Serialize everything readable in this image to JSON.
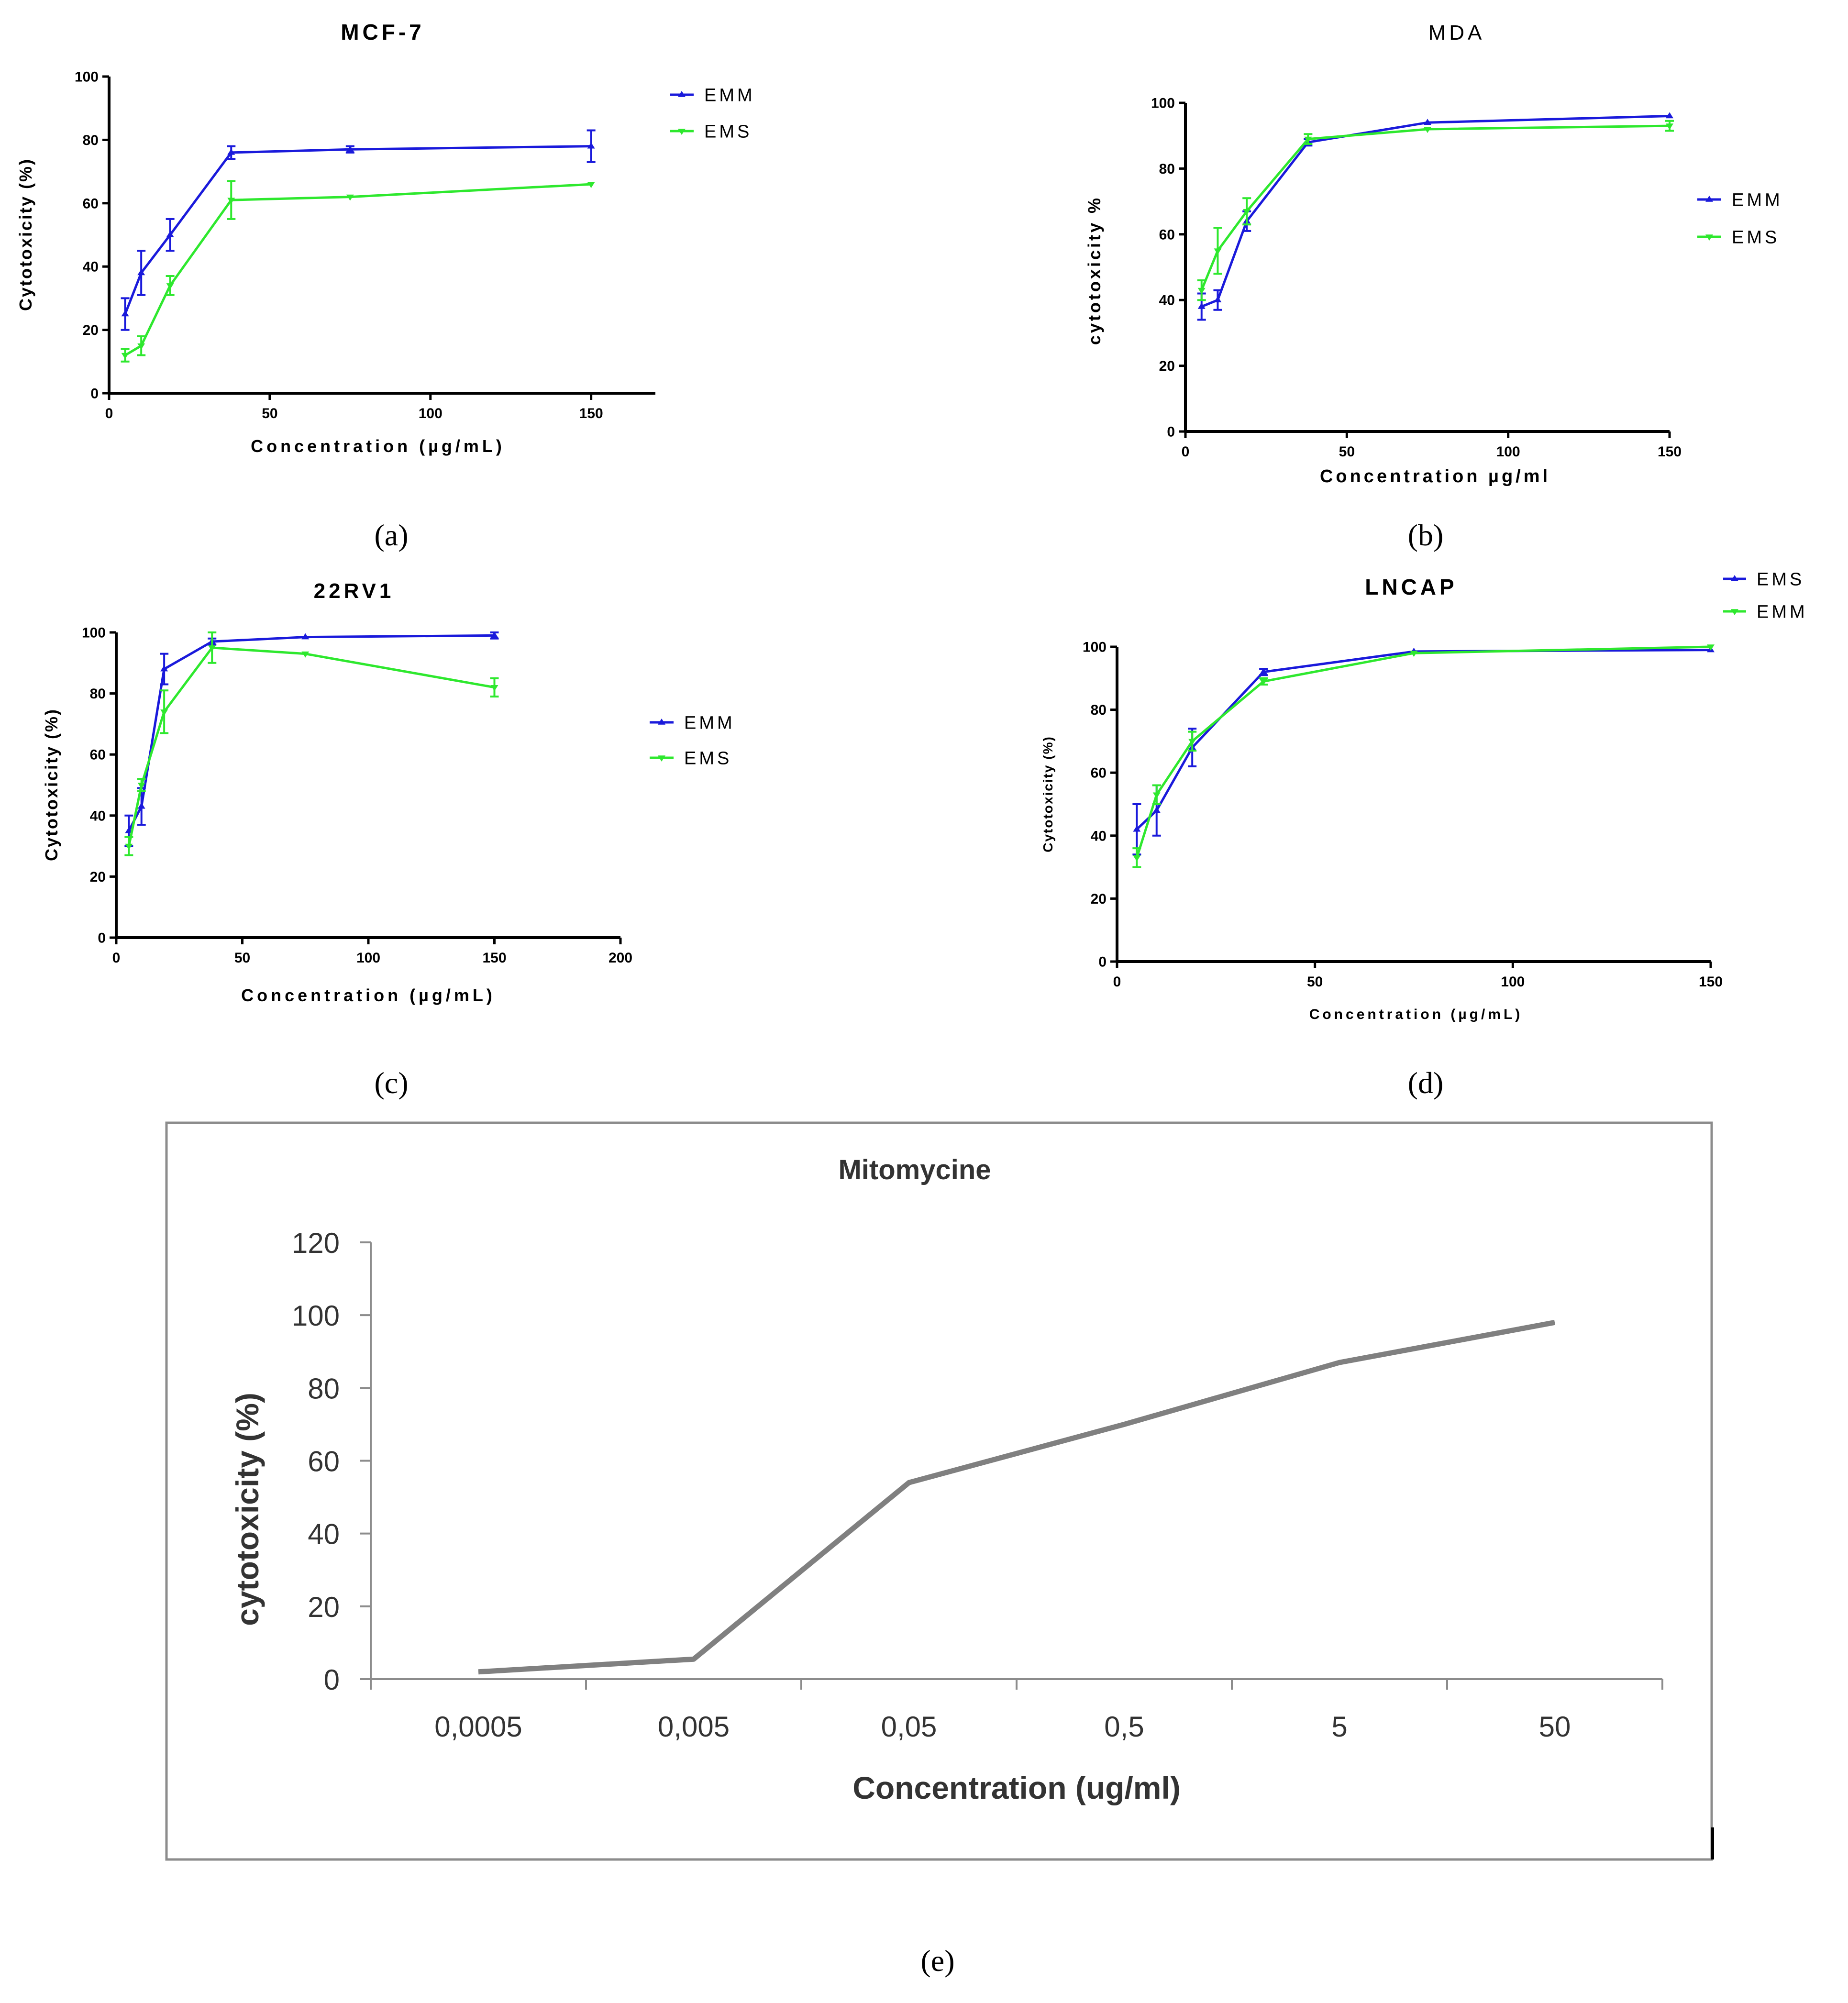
{
  "chart_data": [
    {
      "id": "a",
      "type": "line",
      "panel_label": "(a)",
      "title": "MCF-7",
      "xlabel": "Concentration (µg/mL)",
      "ylabel": "Cytotoxicity (%)",
      "xlim": [
        0,
        170
      ],
      "ylim": [
        0,
        100
      ],
      "xticks": [
        0,
        50,
        100,
        150
      ],
      "yticks": [
        0,
        20,
        40,
        60,
        80,
        100
      ],
      "legend_position": "top-right-outside",
      "series": [
        {
          "name": "EMM",
          "color": "#1a1adb",
          "marker": "triangle-up",
          "x": [
            5,
            10,
            19,
            38,
            75,
            150
          ],
          "y": [
            25,
            38,
            50,
            76,
            77,
            78
          ],
          "err": [
            5,
            7,
            5,
            2,
            1,
            5
          ]
        },
        {
          "name": "EMS",
          "color": "#2ee82e",
          "marker": "triangle-down",
          "x": [
            5,
            10,
            19,
            38,
            75,
            150
          ],
          "y": [
            12,
            15,
            34,
            61,
            62,
            66
          ],
          "err": [
            2,
            3,
            3,
            6,
            0.5,
            0.5
          ]
        }
      ]
    },
    {
      "id": "b",
      "type": "line",
      "panel_label": "(b)",
      "title": "MDA",
      "xlabel": "Concentration µg/ml",
      "ylabel": "cytotoxicity %",
      "xlim": [
        0,
        150
      ],
      "ylim": [
        0,
        100
      ],
      "xticks": [
        0,
        50,
        100,
        150
      ],
      "yticks": [
        0,
        20,
        40,
        60,
        80,
        100
      ],
      "legend_position": "right",
      "series": [
        {
          "name": "EMM",
          "color": "#1a1adb",
          "marker": "triangle-up",
          "x": [
            5,
            10,
            19,
            38,
            75,
            150
          ],
          "y": [
            38,
            40,
            64,
            88,
            94,
            96
          ],
          "err": [
            4,
            3,
            3,
            1,
            0.5,
            0.5
          ]
        },
        {
          "name": "EMS",
          "color": "#2ee82e",
          "marker": "triangle-down",
          "x": [
            5,
            10,
            19,
            38,
            75,
            150
          ],
          "y": [
            43,
            55,
            67,
            89,
            92,
            93
          ],
          "err": [
            3,
            7,
            4,
            1.5,
            0.5,
            1.5
          ]
        }
      ]
    },
    {
      "id": "c",
      "type": "line",
      "panel_label": "(c)",
      "title": "22RV1",
      "xlabel": "Concentration (µg/mL)",
      "ylabel": "Cytotoxicity (%)",
      "xlim": [
        0,
        200
      ],
      "ylim": [
        0,
        100
      ],
      "xticks": [
        0,
        50,
        100,
        150,
        200
      ],
      "yticks": [
        0,
        20,
        40,
        60,
        80,
        100
      ],
      "legend_position": "right",
      "series": [
        {
          "name": "EMM",
          "color": "#1a1adb",
          "marker": "triangle-up",
          "x": [
            5,
            10,
            19,
            38,
            75,
            150
          ],
          "y": [
            35,
            43,
            88,
            97,
            98.5,
            99
          ],
          "err": [
            5,
            6,
            5,
            1,
            0.5,
            1
          ]
        },
        {
          "name": "EMS",
          "color": "#2ee82e",
          "marker": "triangle-down",
          "x": [
            5,
            10,
            19,
            38,
            75,
            150
          ],
          "y": [
            30,
            50,
            74,
            95,
            93,
            82
          ],
          "err": [
            3,
            2,
            7,
            5,
            0.5,
            3
          ]
        }
      ]
    },
    {
      "id": "d",
      "type": "line",
      "panel_label": "(d)",
      "title": "LNCAP",
      "xlabel": "Concentration (µg/mL)",
      "ylabel": "Cytotoxicity (%)",
      "xlim": [
        0,
        150
      ],
      "ylim": [
        0,
        100
      ],
      "xticks": [
        0,
        50,
        100,
        150
      ],
      "yticks": [
        0,
        20,
        40,
        60,
        80,
        100
      ],
      "legend_position": "top-right",
      "series": [
        {
          "name": "EMS",
          "color": "#1a1adb",
          "marker": "triangle-up",
          "x": [
            5,
            10,
            19,
            37,
            75,
            150
          ],
          "y": [
            42,
            48,
            68,
            92,
            98.5,
            99
          ],
          "err": [
            8,
            8,
            6,
            1,
            0.5,
            0.5
          ]
        },
        {
          "name": "EMM",
          "color": "#2ee82e",
          "marker": "triangle-down",
          "x": [
            5,
            10,
            19,
            37,
            75,
            150
          ],
          "y": [
            33,
            53,
            70,
            89,
            98,
            100
          ],
          "err": [
            3,
            3,
            3,
            1,
            0.5,
            0.5
          ]
        }
      ]
    },
    {
      "id": "e",
      "type": "line",
      "panel_label": "(e)",
      "title": "Mitomycine",
      "xlabel": "Concentration (ug/ml)",
      "ylabel": "cytotoxicity (%)",
      "categories": [
        "0,0005",
        "0,005",
        "0,05",
        "0,5",
        "5",
        "50"
      ],
      "ylim": [
        0,
        120
      ],
      "yticks": [
        0,
        20,
        40,
        60,
        80,
        100,
        120
      ],
      "series": [
        {
          "name": "Mitomycine",
          "color": "#808080",
          "values": [
            2,
            5.5,
            54,
            70,
            87,
            98
          ]
        }
      ]
    }
  ]
}
